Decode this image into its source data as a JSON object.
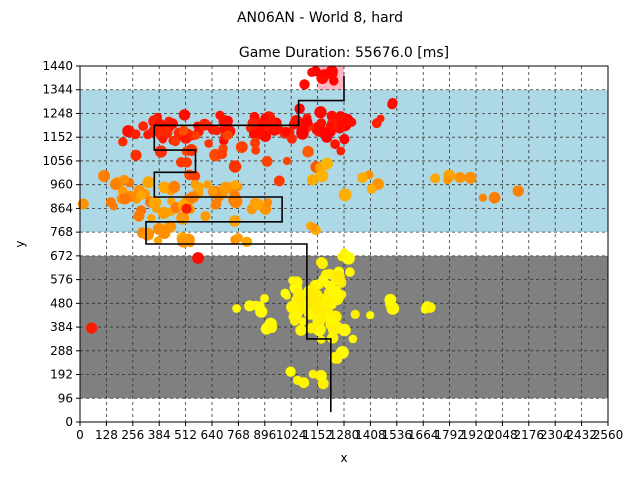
{
  "chart_data": {
    "type": "scatter",
    "suptitle": "AN06AN - World 8, hard",
    "title": "Game Duration: 55676.0 [ms]",
    "xlabel": "x",
    "ylabel": "y",
    "xlim": [
      0,
      2560
    ],
    "ylim": [
      0,
      1440
    ],
    "xticks": [
      0,
      128,
      256,
      384,
      512,
      640,
      768,
      896,
      1024,
      1152,
      1280,
      1408,
      1536,
      1664,
      1792,
      1920,
      2048,
      2176,
      2304,
      2432,
      2560
    ],
    "yticks": [
      0,
      96,
      192,
      288,
      384,
      480,
      576,
      672,
      768,
      864,
      960,
      1056,
      1152,
      1248,
      1344,
      1440
    ],
    "grid": true,
    "regions": [
      {
        "name": "gray-zone",
        "x": [
          0,
          2560
        ],
        "y": [
          96,
          672
        ],
        "color": "#808080"
      },
      {
        "name": "blue-zone",
        "x": [
          0,
          2560
        ],
        "y": [
          768,
          1344
        ],
        "color": "#add8e6"
      },
      {
        "name": "goal-zone",
        "x": [
          1152,
          1280
        ],
        "y": [
          1344,
          1440
        ],
        "color": "#ffb6c1"
      }
    ],
    "path": [
      [
        1216,
        40
      ],
      [
        1216,
        336
      ],
      [
        1100,
        336
      ],
      [
        1100,
        710
      ],
      [
        1100,
        720
      ],
      [
        320,
        720
      ],
      [
        320,
        810
      ],
      [
        980,
        810
      ],
      [
        980,
        910
      ],
      [
        360,
        910
      ],
      [
        360,
        1010
      ],
      [
        560,
        1010
      ],
      [
        560,
        1100
      ],
      [
        360,
        1100
      ],
      [
        360,
        1200
      ],
      [
        1060,
        1200
      ],
      [
        1060,
        1300
      ],
      [
        1280,
        1300
      ],
      [
        1280,
        1400
      ]
    ],
    "color_stops": [
      "#ff0000",
      "#ff4500",
      "#ffa500",
      "#ffd700",
      "#ffff00"
    ],
    "clusters": [
      {
        "cx": 1170,
        "cy": 1400,
        "sx": 50,
        "sy": 25,
        "n": 10,
        "t": 0.0
      },
      {
        "cx": 1250,
        "cy": 1230,
        "sx": 70,
        "sy": 40,
        "n": 10,
        "t": 0.02
      },
      {
        "cx": 1520,
        "cy": 1280,
        "sx": 10,
        "sy": 8,
        "n": 2,
        "t": 0.05
      },
      {
        "cx": 750,
        "cy": 1190,
        "sx": 300,
        "sy": 25,
        "n": 55,
        "t": 0.08
      },
      {
        "cx": 1020,
        "cy": 1200,
        "sx": 120,
        "sy": 20,
        "n": 15,
        "t": 0.05
      },
      {
        "cx": 420,
        "cy": 1150,
        "sx": 120,
        "sy": 40,
        "n": 15,
        "t": 0.12
      },
      {
        "cx": 620,
        "cy": 1080,
        "sx": 120,
        "sy": 50,
        "n": 12,
        "t": 0.22
      },
      {
        "cx": 900,
        "cy": 1050,
        "sx": 200,
        "sy": 40,
        "n": 12,
        "t": 0.25
      },
      {
        "cx": 1230,
        "cy": 1150,
        "sx": 40,
        "sy": 40,
        "n": 6,
        "t": 0.05
      },
      {
        "cx": 200,
        "cy": 920,
        "sx": 70,
        "sy": 40,
        "n": 18,
        "t": 0.42
      },
      {
        "cx": 600,
        "cy": 900,
        "sx": 200,
        "sy": 45,
        "n": 45,
        "t": 0.45
      },
      {
        "cx": 380,
        "cy": 800,
        "sx": 50,
        "sy": 30,
        "n": 8,
        "t": 0.46
      },
      {
        "cx": 1200,
        "cy": 980,
        "sx": 40,
        "sy": 30,
        "n": 6,
        "t": 0.55
      },
      {
        "cx": 1150,
        "cy": 780,
        "sx": 20,
        "sy": 15,
        "n": 3,
        "t": 0.5
      },
      {
        "cx": 1380,
        "cy": 960,
        "sx": 30,
        "sy": 30,
        "n": 4,
        "t": 0.5
      },
      {
        "cx": 1780,
        "cy": 990,
        "sx": 60,
        "sy": 15,
        "n": 5,
        "t": 0.48
      },
      {
        "cx": 2100,
        "cy": 920,
        "sx": 80,
        "sy": 10,
        "n": 3,
        "t": 0.38
      },
      {
        "cx": 1160,
        "cy": 480,
        "sx": 60,
        "sy": 80,
        "n": 70,
        "t": 0.92
      },
      {
        "cx": 1050,
        "cy": 500,
        "sx": 40,
        "sy": 40,
        "n": 15,
        "t": 0.95
      },
      {
        "cx": 850,
        "cy": 480,
        "sx": 60,
        "sy": 30,
        "n": 6,
        "t": 1.0
      },
      {
        "cx": 900,
        "cy": 390,
        "sx": 30,
        "sy": 10,
        "n": 3,
        "t": 1.0
      },
      {
        "cx": 1240,
        "cy": 400,
        "sx": 30,
        "sy": 20,
        "n": 6,
        "t": 0.95
      },
      {
        "cx": 1200,
        "cy": 620,
        "sx": 30,
        "sy": 30,
        "n": 5,
        "t": 0.9
      },
      {
        "cx": 1290,
        "cy": 685,
        "sx": 10,
        "sy": 10,
        "n": 2,
        "t": 0.93
      },
      {
        "cx": 1500,
        "cy": 480,
        "sx": 20,
        "sy": 10,
        "n": 3,
        "t": 0.95
      },
      {
        "cx": 1680,
        "cy": 460,
        "sx": 30,
        "sy": 10,
        "n": 4,
        "t": 0.92
      },
      {
        "cx": 1340,
        "cy": 450,
        "sx": 10,
        "sy": 10,
        "n": 1,
        "t": 0.95
      },
      {
        "cx": 1420,
        "cy": 430,
        "sx": 10,
        "sy": 10,
        "n": 1,
        "t": 1.0
      },
      {
        "cx": 1240,
        "cy": 265,
        "sx": 15,
        "sy": 10,
        "n": 3,
        "t": 0.95
      },
      {
        "cx": 1110,
        "cy": 170,
        "sx": 30,
        "sy": 15,
        "n": 5,
        "t": 0.95
      },
      {
        "cx": 1020,
        "cy": 200,
        "sx": 5,
        "sy": 5,
        "n": 1,
        "t": 1.0
      },
      {
        "cx": 500,
        "cy": 735,
        "sx": 40,
        "sy": 10,
        "n": 4,
        "t": 0.5
      },
      {
        "cx": 760,
        "cy": 740,
        "sx": 30,
        "sy": 10,
        "n": 3,
        "t": 0.5
      },
      {
        "cx": 570,
        "cy": 660,
        "sx": 5,
        "sy": 5,
        "n": 1,
        "t": 0.05
      },
      {
        "cx": 50,
        "cy": 375,
        "sx": 5,
        "sy": 5,
        "n": 1,
        "t": 0.05
      },
      {
        "cx": 520,
        "cy": 870,
        "sx": 5,
        "sy": 5,
        "n": 1,
        "t": 0.1
      }
    ]
  }
}
